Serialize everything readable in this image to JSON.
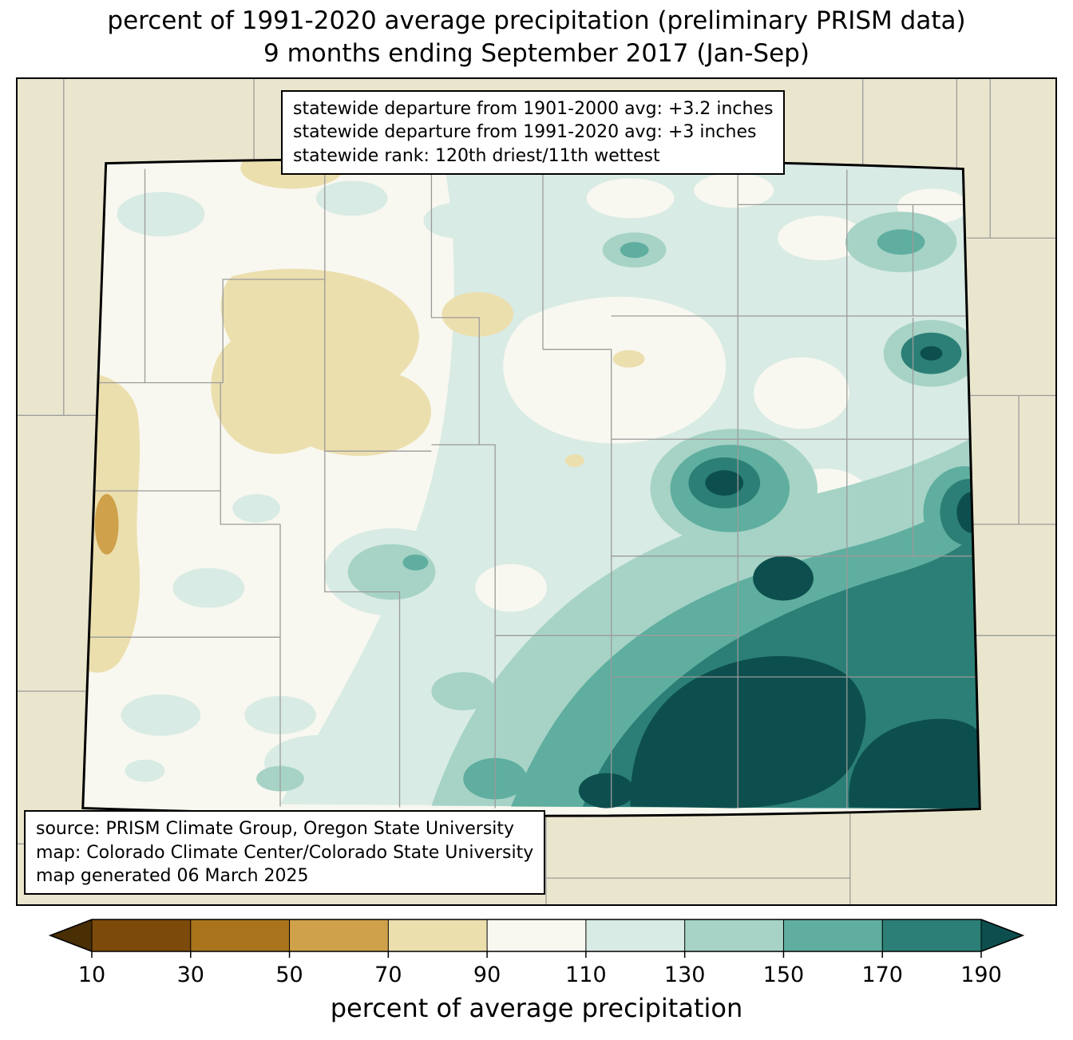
{
  "title": {
    "line1": "percent of 1991-2020 average precipitation (preliminary PRISM data)",
    "line2": "9 months ending September 2017 (Jan-Sep)"
  },
  "info_box": {
    "lines": [
      "statewide departure from 1901-2000 avg: +3.2 inches",
      "statewide departure from 1991-2020 avg: +3 inches",
      "statewide rank: 120th driest/11th wettest"
    ]
  },
  "credits_box": {
    "lines": [
      "source: PRISM Climate Group, Oregon State University",
      "map: Colorado Climate Center/Colorado State University",
      "map generated 06 March 2025"
    ]
  },
  "colorbar": {
    "label": "percent of average precipitation",
    "ticks": [
      "10",
      "30",
      "50",
      "70",
      "90",
      "110",
      "130",
      "150",
      "170",
      "190"
    ],
    "below_key": "lt10",
    "above_key": "gt190",
    "segment_keys": [
      "p10_30",
      "p30_50",
      "p50_70",
      "p70_90",
      "p90_110",
      "p110_130",
      "p130_150",
      "p150_170",
      "p170_190"
    ]
  },
  "palette": {
    "lt10": "#4a2e04",
    "p10_30": "#7c4a0a",
    "p30_50": "#a9741c",
    "p50_70": "#cfa14a",
    "p70_90": "#ecdfae",
    "p90_110": "#f8f8f0",
    "p110_130": "#d8ebe4",
    "p130_150": "#a6d3c6",
    "p150_170": "#5fae9f",
    "p170_190": "#2b7f76",
    "gt190": "#0d4f4e",
    "mask": "#eae6ce",
    "county_line": "#9b9b9b",
    "state_line": "#000000"
  }
}
